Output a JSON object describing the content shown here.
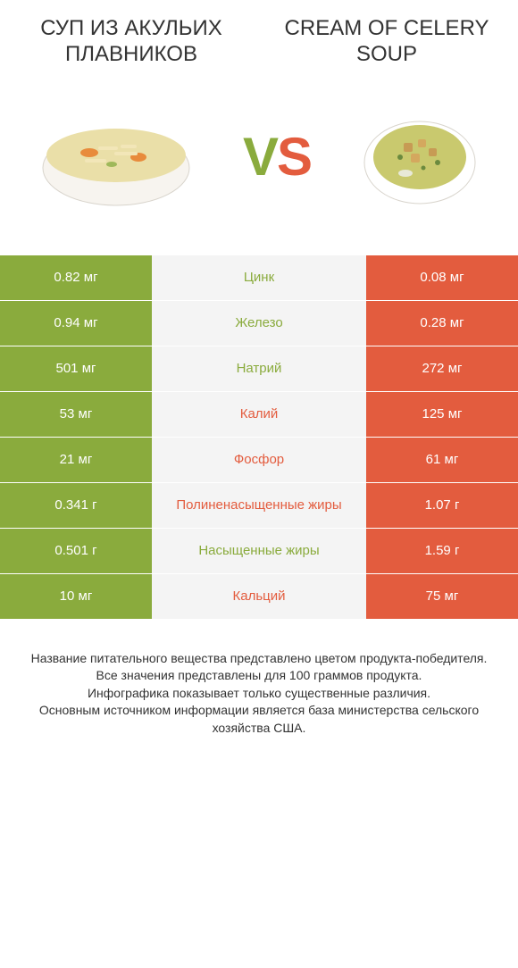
{
  "colors": {
    "left": "#8aab3d",
    "right": "#e35c3e",
    "mid_bg": "#f4f4f4",
    "text": "#333333"
  },
  "header": {
    "left_title": "СУП ИЗ АКУЛЬИХ ПЛАВНИКОВ",
    "right_title": "CREAM OF CELERY SOUP"
  },
  "vs": {
    "v": "V",
    "s": "S"
  },
  "rows": [
    {
      "left": "0.82 мг",
      "label": "Цинк",
      "right": "0.08 мг",
      "winner": "left"
    },
    {
      "left": "0.94 мг",
      "label": "Железо",
      "right": "0.28 мг",
      "winner": "left"
    },
    {
      "left": "501 мг",
      "label": "Натрий",
      "right": "272 мг",
      "winner": "left"
    },
    {
      "left": "53 мг",
      "label": "Калий",
      "right": "125 мг",
      "winner": "right"
    },
    {
      "left": "21 мг",
      "label": "Фосфор",
      "right": "61 мг",
      "winner": "right"
    },
    {
      "left": "0.341 г",
      "label": "Полиненасыщенные жиры",
      "right": "1.07 г",
      "winner": "right"
    },
    {
      "left": "0.501 г",
      "label": "Насыщенные жиры",
      "right": "1.59 г",
      "winner": "left"
    },
    {
      "left": "10 мг",
      "label": "Кальций",
      "right": "75 мг",
      "winner": "right"
    }
  ],
  "footer": {
    "l1": "Название питательного вещества представлено цветом продукта-победителя.",
    "l2": "Все значения представлены для 100 граммов продукта.",
    "l3": "Инфографика показывает только существенные различия.",
    "l4": "Основным источником информации является база министерства сельского хозяйства США."
  }
}
